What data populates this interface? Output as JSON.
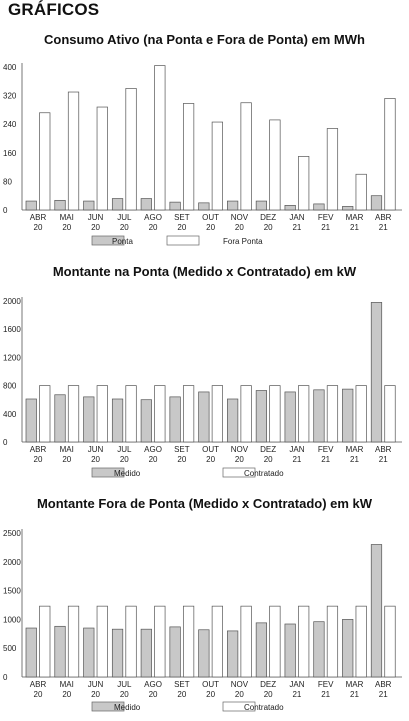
{
  "page": {
    "heading": "GRÁFICOS"
  },
  "chart_data": [
    {
      "type": "bar",
      "title": "Consumo Ativo (na Ponta e Fora de Ponta) em MWh",
      "categories": [
        "ABR\n20",
        "MAI\n20",
        "JUN\n20",
        "JUL\n20",
        "AGO\n20",
        "SET\n20",
        "OUT\n20",
        "NOV\n20",
        "DEZ\n20",
        "JAN\n21",
        "FEV\n21",
        "MAR\n21",
        "ABR\n21"
      ],
      "ylim": [
        0,
        400
      ],
      "yticks": [
        0,
        80,
        160,
        240,
        320,
        400
      ],
      "legend": "bottom",
      "series": [
        {
          "name": "Ponta",
          "color": "#c8c8c8",
          "values": [
            25,
            27,
            25,
            32,
            32,
            22,
            20,
            25,
            25,
            13,
            17,
            10,
            40
          ]
        },
        {
          "name": "Fora Ponta",
          "color": "#ffffff",
          "values": [
            272,
            330,
            288,
            340,
            404,
            298,
            246,
            300,
            252,
            150,
            228,
            100,
            312
          ]
        }
      ]
    },
    {
      "type": "bar",
      "title": "Montante na Ponta (Medido x Contratado) em kW",
      "categories": [
        "ABR\n20",
        "MAI\n20",
        "JUN\n20",
        "JUL\n20",
        "AGO\n20",
        "SET\n20",
        "OUT\n20",
        "NOV\n20",
        "DEZ\n20",
        "JAN\n21",
        "FEV\n21",
        "MAR\n21",
        "ABR\n21"
      ],
      "ylim": [
        0,
        2000
      ],
      "yticks": [
        0,
        400,
        800,
        1200,
        1600,
        2000
      ],
      "legend": "bottom",
      "series": [
        {
          "name": "Medido",
          "color": "#c8c8c8",
          "values": [
            610,
            670,
            640,
            610,
            600,
            640,
            710,
            610,
            730,
            710,
            740,
            750,
            1980
          ]
        },
        {
          "name": "Contratado",
          "color": "#ffffff",
          "values": [
            800,
            800,
            800,
            800,
            800,
            800,
            800,
            800,
            800,
            800,
            800,
            800,
            800
          ]
        }
      ]
    },
    {
      "type": "bar",
      "title": "Montante Fora de Ponta (Medido x Contratado) em kW",
      "categories": [
        "ABR\n20",
        "MAI\n20",
        "JUN\n20",
        "JUL\n20",
        "AGO\n20",
        "SET\n20",
        "OUT\n20",
        "NOV\n20",
        "DEZ\n20",
        "JAN\n21",
        "FEV\n21",
        "MAR\n21",
        "ABR\n21"
      ],
      "ylim": [
        0,
        2500
      ],
      "yticks": [
        0,
        500,
        1000,
        1500,
        2000,
        2500
      ],
      "legend": "bottom",
      "series": [
        {
          "name": "Medido",
          "color": "#c8c8c8",
          "values": [
            850,
            880,
            850,
            830,
            830,
            870,
            820,
            800,
            940,
            920,
            960,
            1000,
            2300
          ]
        },
        {
          "name": "Contratado",
          "color": "#ffffff",
          "values": [
            1230,
            1230,
            1230,
            1230,
            1230,
            1230,
            1230,
            1230,
            1230,
            1230,
            1230,
            1230,
            1230
          ]
        }
      ]
    }
  ]
}
